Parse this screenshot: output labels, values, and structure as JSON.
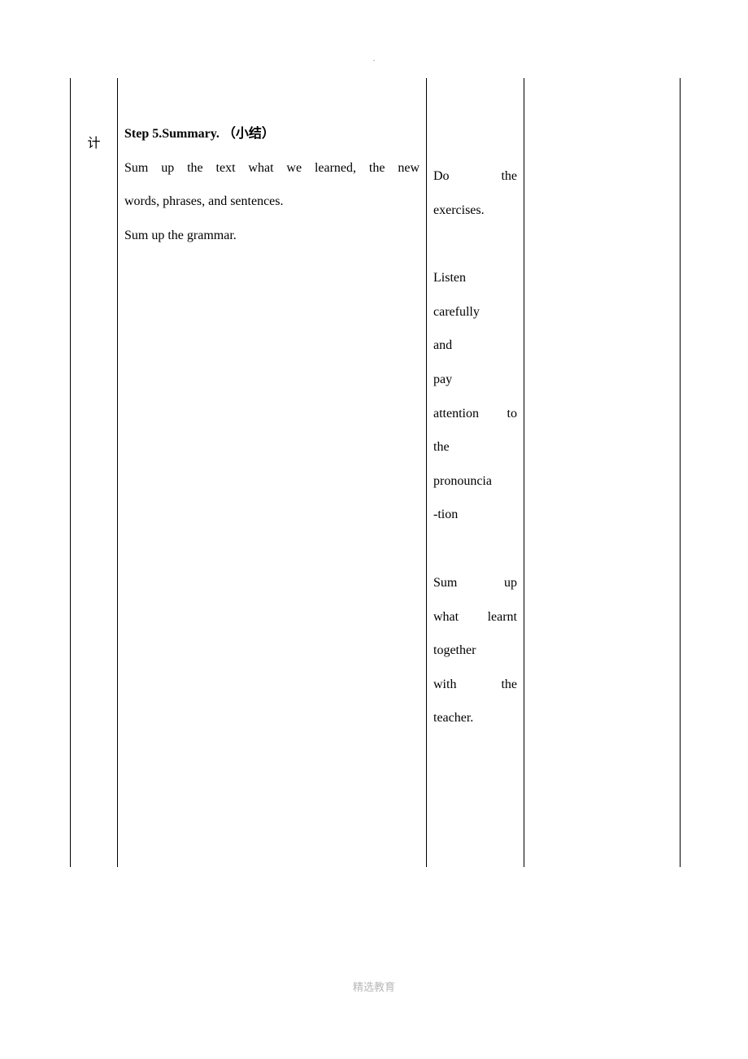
{
  "pageMark": ".",
  "footer": "精选教育",
  "table": {
    "col1": {
      "char": "计"
    },
    "col2": {
      "stepTitle": "Step 5.Summary.  （小结）",
      "line1a": "Sum up the text what we learned, the new",
      "line1b": "words, phrases, and sentences.",
      "line2": "Sum up the grammar."
    },
    "col3": {
      "p1a": "Do     the",
      "p1b": "exercises.",
      "p2a": "Listen",
      "p2b": "carefully",
      "p2c": "and",
      "p2d": "pay",
      "p2e": "attention to",
      "p2f": "the",
      "p2g": "pronouncia",
      "p2h": "-tion",
      "p3a": "Sum    up",
      "p3b": "what learnt",
      "p3c": "together",
      "p3d": "with    the",
      "p3e": "teacher."
    }
  },
  "colors": {
    "border": "#000000",
    "text": "#000000",
    "footerText": "#b8b8b8",
    "markText": "#888888",
    "background": "#ffffff"
  },
  "fonts": {
    "body": "Times New Roman / SimSun",
    "bodySizePt": 12,
    "footerSizePt": 10
  }
}
